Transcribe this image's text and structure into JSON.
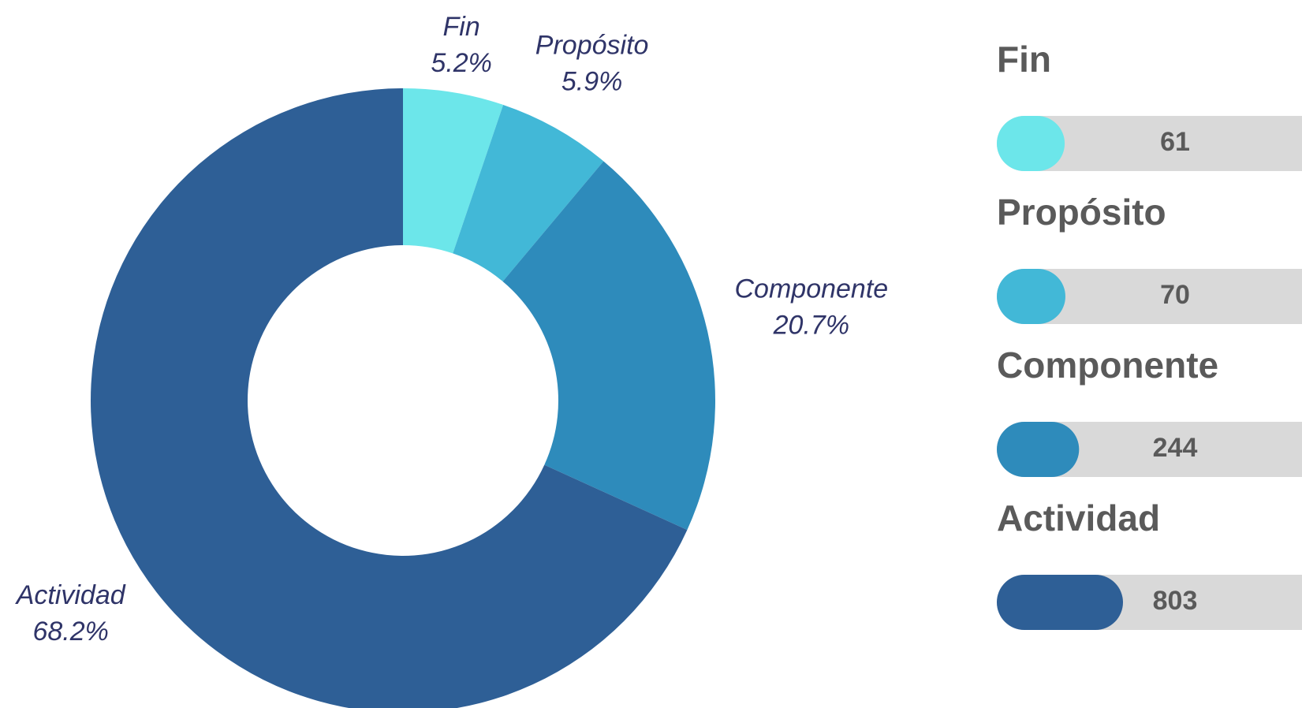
{
  "chart_data": [
    {
      "type": "pie",
      "categories": [
        "Fin",
        "Propósito",
        "Componente",
        "Actividad"
      ],
      "values": [
        5.2,
        5.9,
        20.7,
        68.2
      ],
      "value_labels": [
        "5.2%",
        "5.9%",
        "20.7%",
        "68.2%"
      ],
      "colors": [
        "#6ce6ea",
        "#42b8d7",
        "#2e8bbb",
        "#2e5f96"
      ]
    },
    {
      "type": "bar",
      "categories": [
        "Fin",
        "Propósito",
        "Componente",
        "Actividad"
      ],
      "values": [
        61,
        70,
        244,
        803
      ],
      "colors": [
        "#6ce6ea",
        "#42b8d7",
        "#2e8bbb",
        "#2e5f96"
      ]
    }
  ]
}
